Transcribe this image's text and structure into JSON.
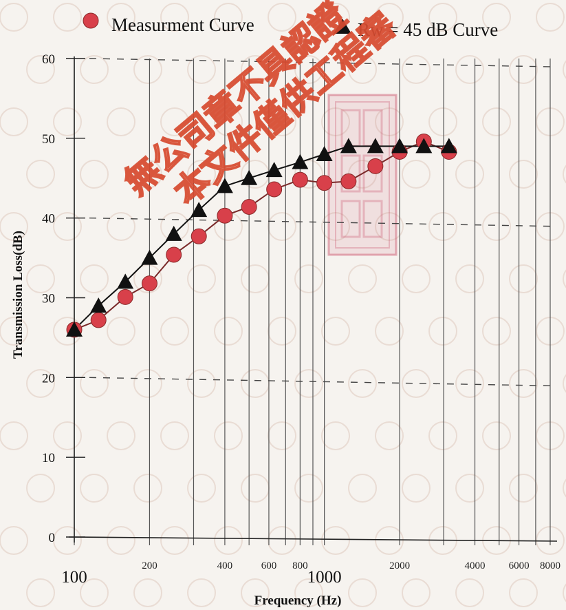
{
  "chart_data": {
    "type": "line",
    "xscale": "log",
    "xlim": [
      100,
      8000
    ],
    "ylim": [
      0,
      60
    ],
    "yticks": [
      0,
      10,
      20,
      30,
      40,
      50,
      60
    ],
    "xticks": [
      {
        "value": 100,
        "label": "100",
        "size": "big"
      },
      {
        "value": 200,
        "label": "200",
        "size": "small"
      },
      {
        "value": 400,
        "label": "400",
        "size": "small"
      },
      {
        "value": 600,
        "label": "600",
        "size": "small"
      },
      {
        "value": 800,
        "label": "800",
        "size": "small"
      },
      {
        "value": 1000,
        "label": "1000",
        "size": "big"
      },
      {
        "value": 2000,
        "label": "2000",
        "size": "small"
      },
      {
        "value": 4000,
        "label": "4000",
        "size": "small"
      },
      {
        "value": 6000,
        "label": "6000",
        "size": "small"
      },
      {
        "value": 8000,
        "label": "8000",
        "size": "small"
      }
    ],
    "xgrid": [
      100,
      200,
      300,
      400,
      500,
      600,
      700,
      800,
      900,
      1000,
      2000,
      3000,
      4000,
      5000,
      6000,
      7000,
      8000
    ],
    "ygrid_dashed": [
      20,
      40,
      60
    ],
    "xlabel": "Frequency (Hz)",
    "ylabel": "Transmission Loss(dB)",
    "series": [
      {
        "name": "Measurment Curve",
        "marker": "circle",
        "color": "#d8404a",
        "x": [
          100,
          125,
          160,
          200,
          250,
          315,
          400,
          500,
          630,
          800,
          1000,
          1250,
          1600,
          2000,
          2500,
          3150
        ],
        "y": [
          26,
          27.2,
          30.1,
          31.8,
          35.4,
          37.7,
          40.3,
          41.4,
          43.6,
          44.8,
          44.4,
          44.6,
          46.5,
          48.3,
          49.6,
          48.3
        ]
      },
      {
        "name": "Rw = 45 dB Curve",
        "marker": "triangle",
        "color": "#111111",
        "x": [
          100,
          125,
          160,
          200,
          250,
          315,
          400,
          500,
          630,
          800,
          1000,
          1250,
          1600,
          2000,
          2500,
          3150
        ],
        "y": [
          26,
          29,
          32,
          35,
          38,
          41,
          44,
          45,
          46,
          47,
          48,
          49,
          49,
          49,
          49,
          49
        ]
      }
    ]
  },
  "watermark": {
    "line1": "無公司章不具認證",
    "line2": "本文件僅供工程審"
  },
  "stamp_color": "#c9516a"
}
